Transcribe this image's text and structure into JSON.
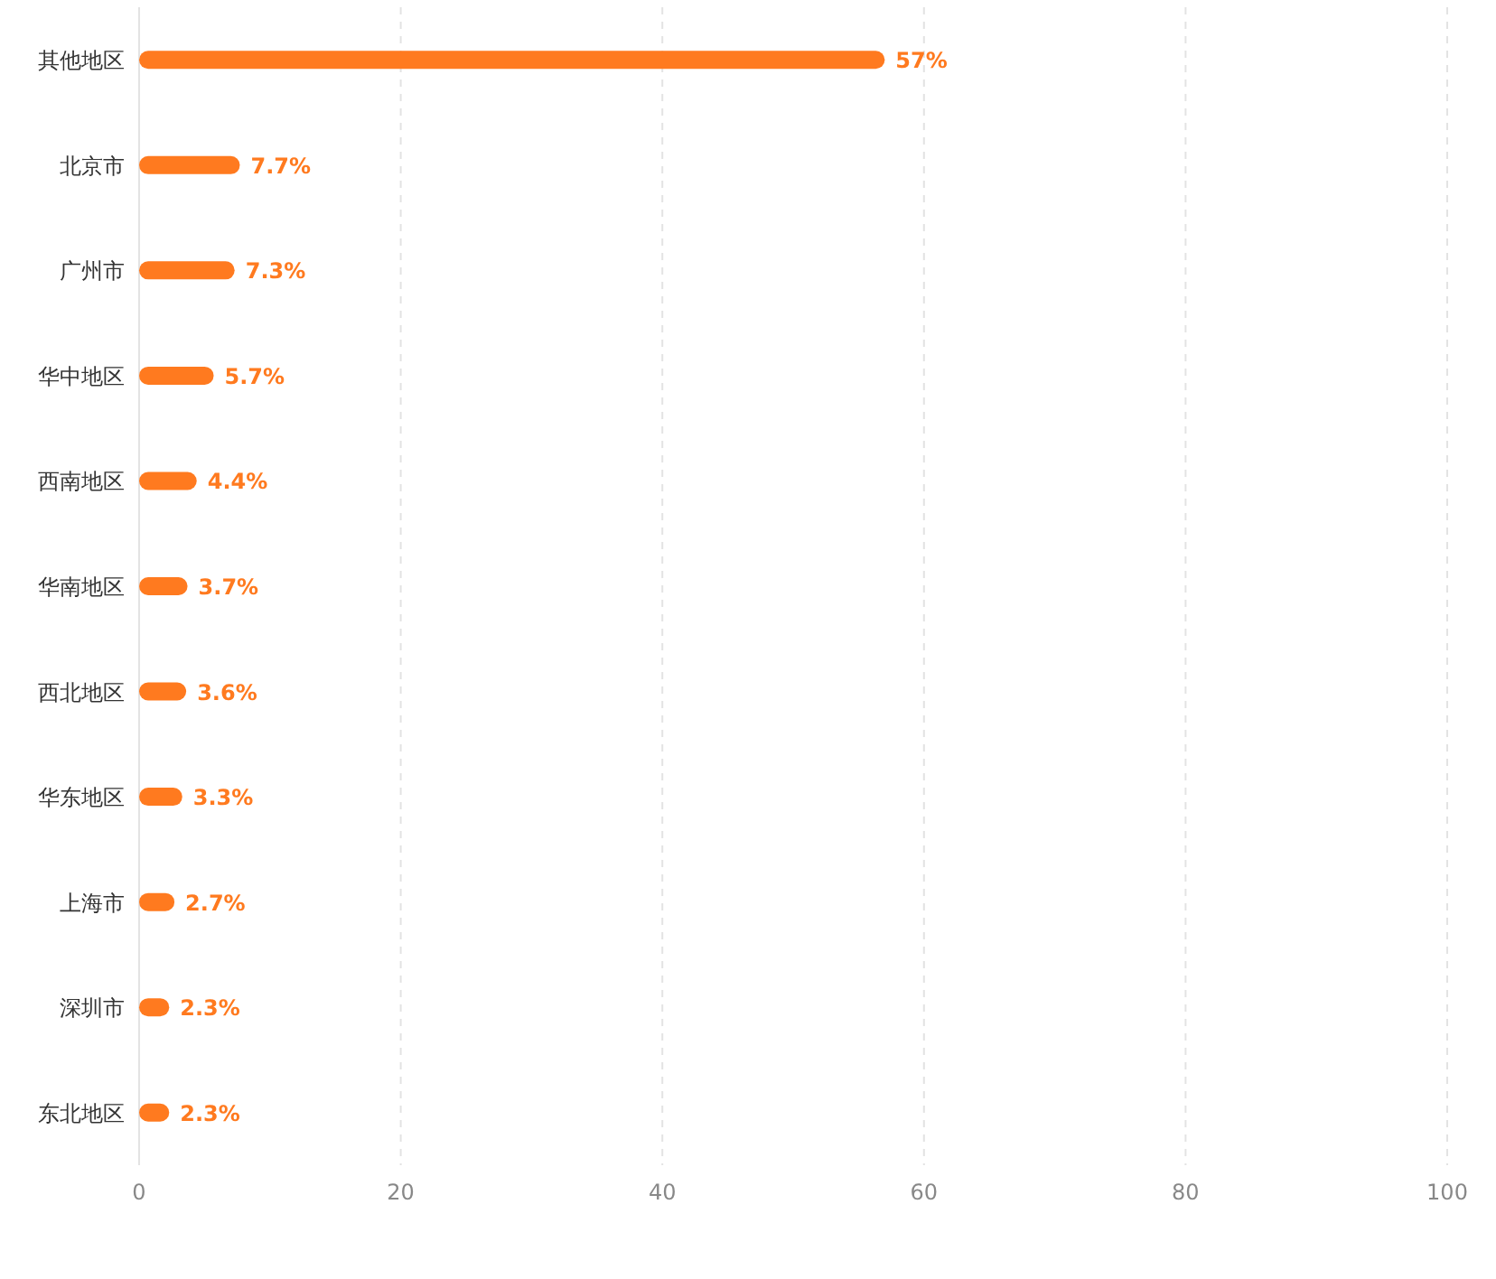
{
  "chart_data": {
    "type": "bar",
    "orientation": "horizontal",
    "categories": [
      "其他地区",
      "北京市",
      "广州市",
      "华中地区",
      "西南地区",
      "华南地区",
      "西北地区",
      "华东地区",
      "上海市",
      "深圳市",
      "东北地区"
    ],
    "values": [
      57,
      7.7,
      7.3,
      5.7,
      4.4,
      3.7,
      3.6,
      3.3,
      2.7,
      2.3,
      2.3
    ],
    "value_labels": [
      "57%",
      "7.7%",
      "7.3%",
      "5.7%",
      "4.4%",
      "3.7%",
      "3.6%",
      "3.3%",
      "2.7%",
      "2.3%",
      "2.3%"
    ],
    "color": "#ff7a1f",
    "xlim": [
      0,
      100
    ],
    "xticks": [
      0,
      20,
      40,
      60,
      80,
      100
    ],
    "grid": "x"
  }
}
